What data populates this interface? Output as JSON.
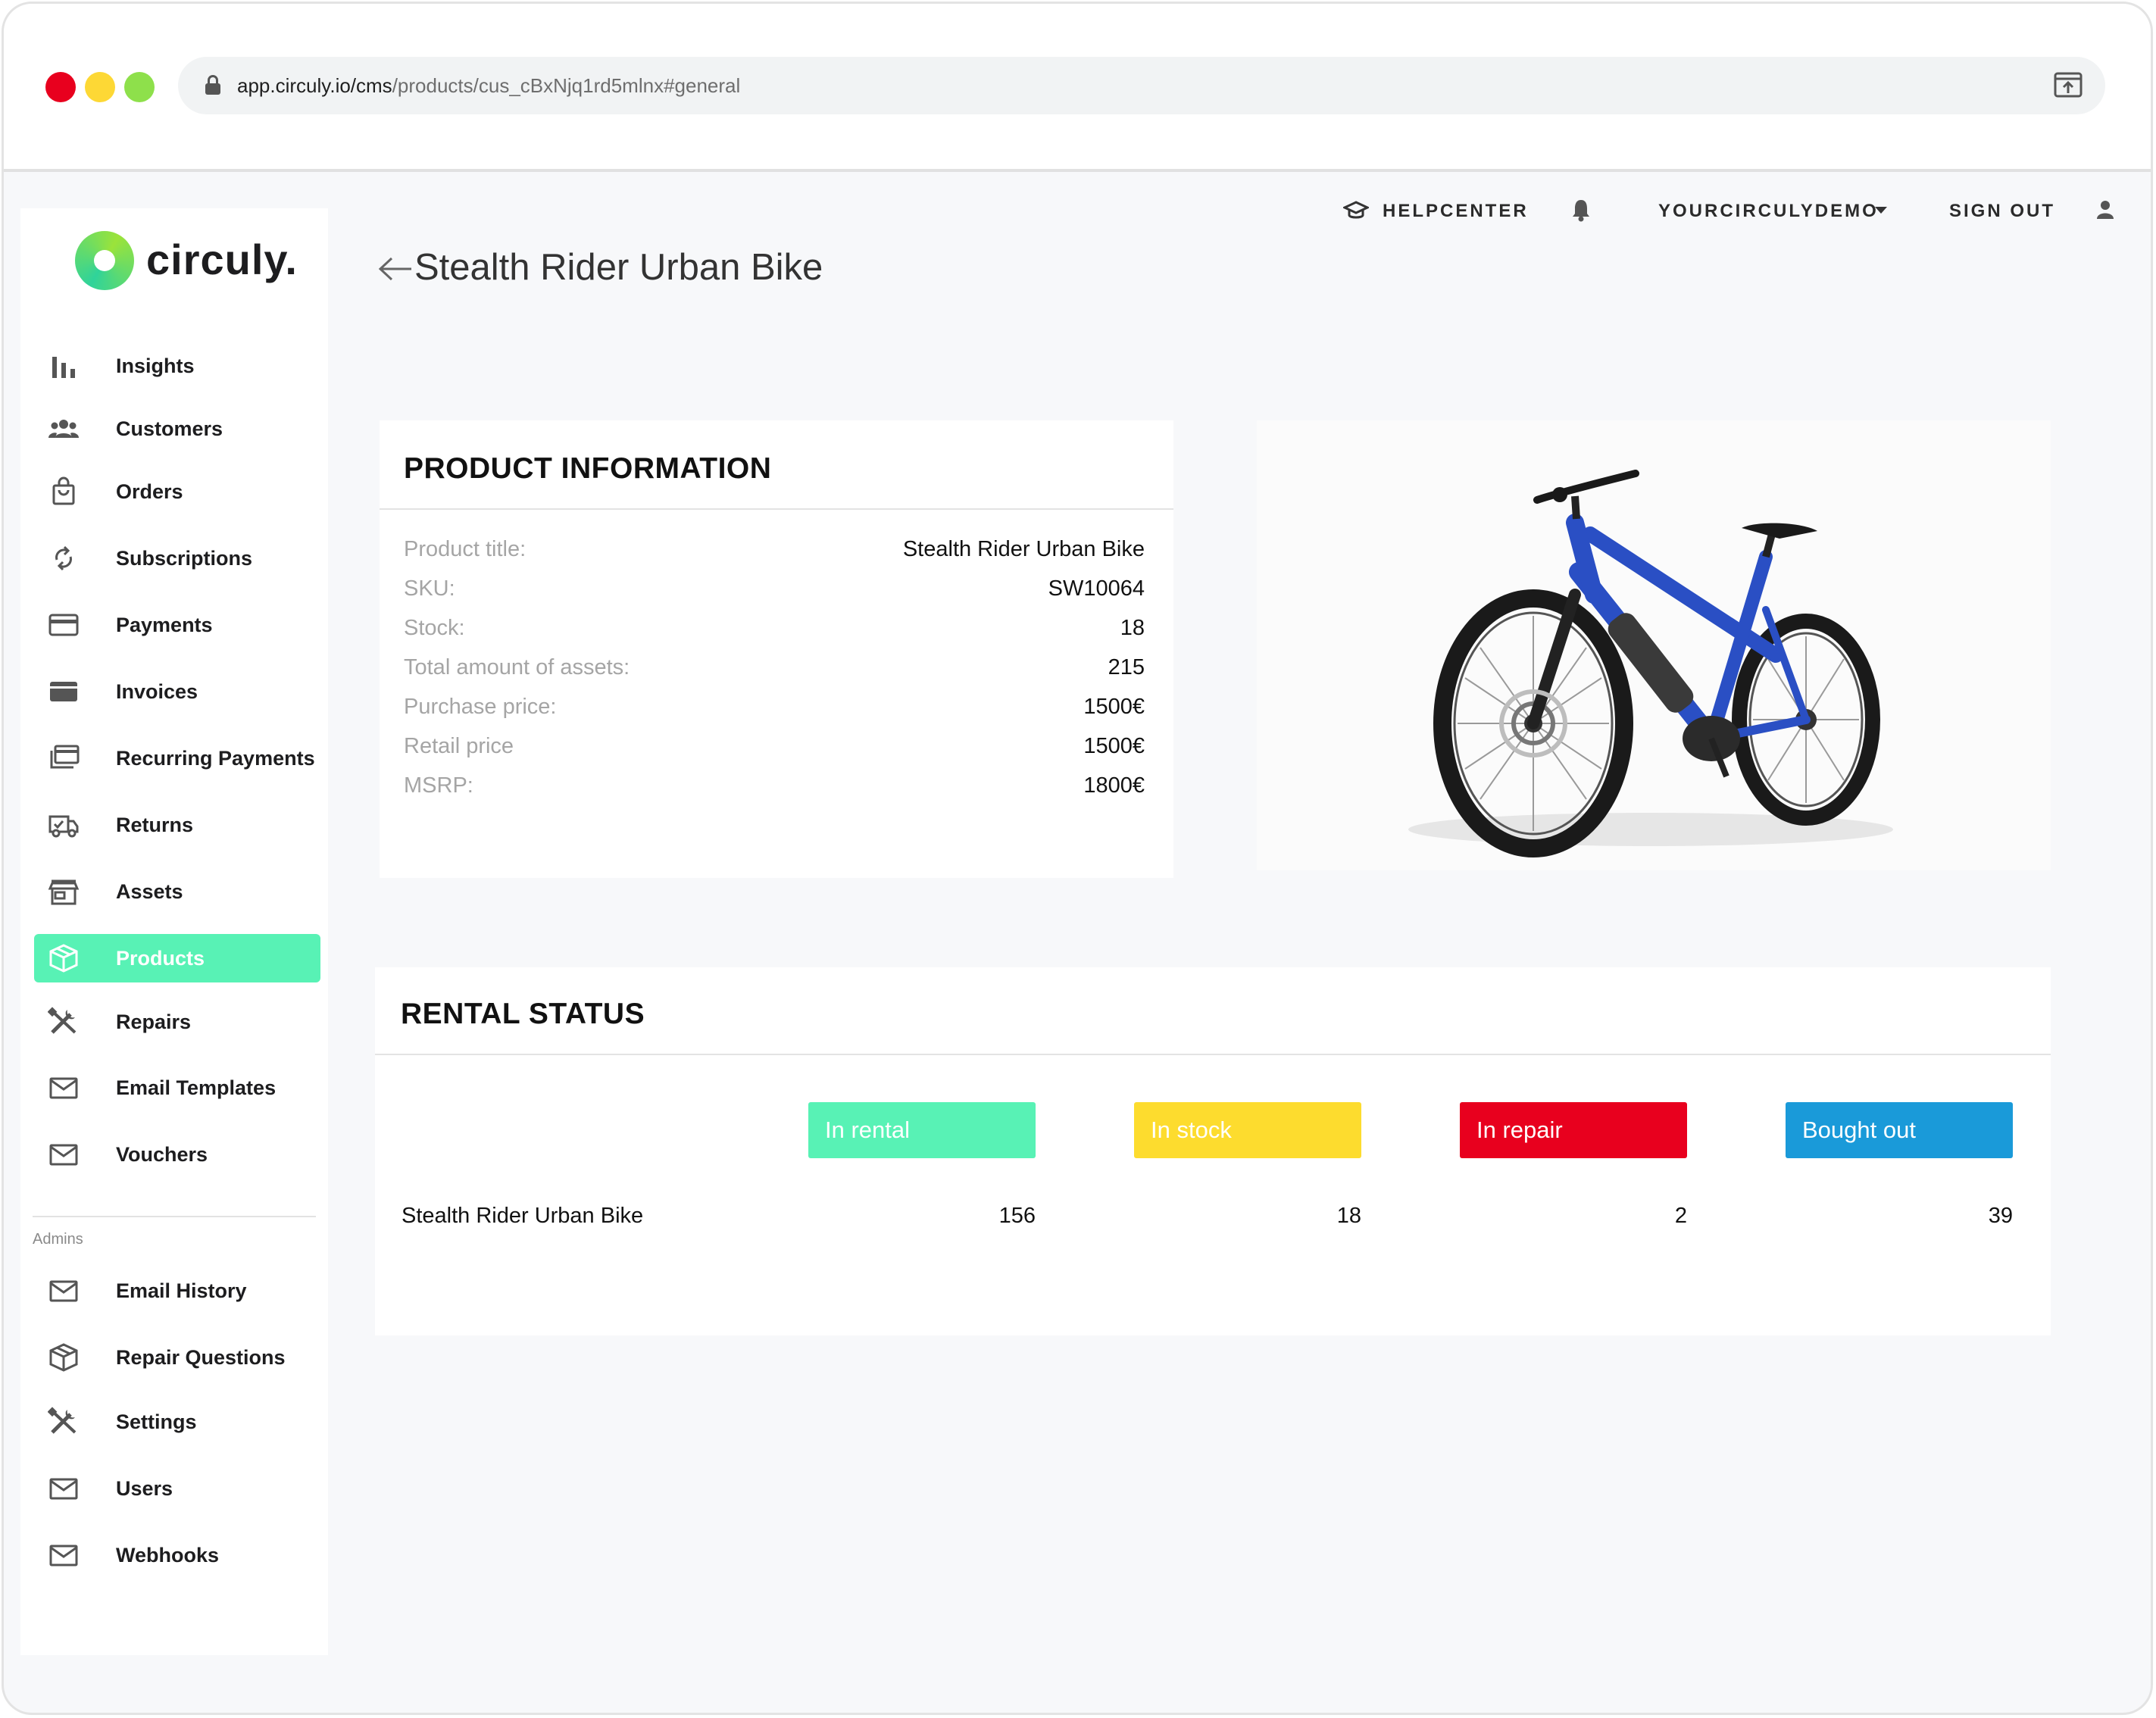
{
  "browser": {
    "url_host": "app.circuly.io/cms",
    "url_path": "/products/cus_cBxNjq1rd5mlnx#general"
  },
  "brand": {
    "logo_text": "circuly."
  },
  "sidebar": {
    "items": [
      {
        "label": "Insights",
        "icon": "bar-chart-icon"
      },
      {
        "label": "Customers",
        "icon": "people-icon"
      },
      {
        "label": "Orders",
        "icon": "shopping-bag-icon"
      },
      {
        "label": "Subscriptions",
        "icon": "sync-icon"
      },
      {
        "label": "Payments",
        "icon": "credit-card-icon"
      },
      {
        "label": "Invoices",
        "icon": "invoice-card-icon"
      },
      {
        "label": "Recurring Payments",
        "icon": "stacked-cards-icon"
      },
      {
        "label": "Returns",
        "icon": "delivery-truck-icon"
      },
      {
        "label": "Assets",
        "icon": "storefront-icon"
      },
      {
        "label": "Products",
        "icon": "package-icon",
        "active": true
      },
      {
        "label": "Repairs",
        "icon": "tools-icon"
      },
      {
        "label": "Email Templates",
        "icon": "envelope-icon"
      },
      {
        "label": "Vouchers",
        "icon": "envelope-icon"
      }
    ],
    "admins_label": "Admins",
    "admin_items": [
      {
        "label": "Email History",
        "icon": "envelope-icon"
      },
      {
        "label": "Repair Questions",
        "icon": "package-icon"
      },
      {
        "label": "Settings",
        "icon": "tools-icon"
      },
      {
        "label": "Users",
        "icon": "envelope-icon"
      },
      {
        "label": "Webhooks",
        "icon": "envelope-icon"
      }
    ]
  },
  "topbar": {
    "helpcenter": "HELPCENTER",
    "account": "YOURCIRCULYDEMO",
    "sign_out": "SIGN OUT"
  },
  "page": {
    "title": "Stealth Rider Urban Bike"
  },
  "product_info": {
    "heading": "PRODUCT INFORMATION",
    "rows": [
      {
        "label": "Product title:",
        "value": "Stealth Rider Urban Bike"
      },
      {
        "label": "SKU:",
        "value": "SW10064"
      },
      {
        "label": "Stock:",
        "value": "18"
      },
      {
        "label": "Total amount of assets:",
        "value": "215"
      },
      {
        "label": "Purchase price:",
        "value": "1500€"
      },
      {
        "label": "Retail price",
        "value": "1500€"
      },
      {
        "label": "MSRP:",
        "value": "1800€"
      }
    ]
  },
  "rental_status": {
    "heading": "RENTAL STATUS",
    "statuses": [
      {
        "label": "In rental",
        "color": "#58f2b5"
      },
      {
        "label": "In stock",
        "color": "#fddc2e"
      },
      {
        "label": "In repair",
        "color": "#e8001e"
      },
      {
        "label": "Bought out",
        "color": "#1a9ad9"
      }
    ],
    "row": {
      "name": "Stealth Rider Urban Bike",
      "counts": [
        "156",
        "18",
        "2",
        "39"
      ]
    }
  },
  "colors": {
    "accent": "#58f2b5",
    "bike_frame": "#2a4fc4"
  }
}
